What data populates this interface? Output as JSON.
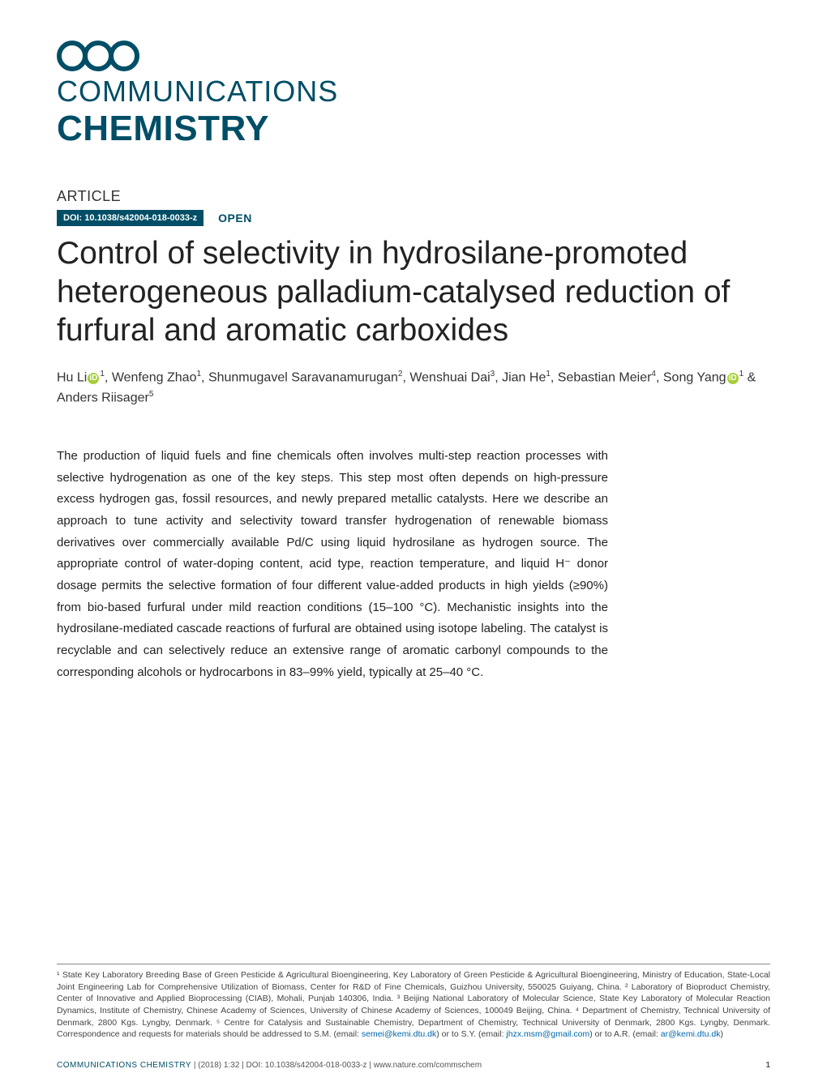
{
  "brand": {
    "line1": "COMMUNICATIONS",
    "line2": "CHEMISTRY"
  },
  "article_type": "ARTICLE",
  "doi_badge": "DOI: 10.1038/s42004-018-0033-z",
  "open_label": "OPEN",
  "title": "Control of selectivity in hydrosilane-promoted heterogeneous palladium-catalysed reduction of furfural and aromatic carboxides",
  "authors": {
    "a1": "Hu Li",
    "a1_aff": "1",
    "a2": ", Wenfeng Zhao",
    "a2_aff": "1",
    "a3": ", Shunmugavel Saravanamurugan",
    "a3_aff": "2",
    "a4": ", Wenshuai Dai",
    "a4_aff": "3",
    "a5": ", Jian He",
    "a5_aff": "1",
    "a6": ", Sebastian Meier",
    "a6_aff": "4",
    "a7": ", Song Yang",
    "a7_aff": "1",
    "a8": " & Anders Riisager",
    "a8_aff": "5"
  },
  "abstract": "The production of liquid fuels and fine chemicals often involves multi-step reaction processes with selective hydrogenation as one of the key steps. This step most often depends on high-pressure excess hydrogen gas, fossil resources, and newly prepared metallic catalysts. Here we describe an approach to tune activity and selectivity toward transfer hydrogenation of renewable biomass derivatives over commercially available Pd/C using liquid hydrosilane as hydrogen source. The appropriate control of water-doping content, acid type, reaction temperature, and liquid H⁻ donor dosage permits the selective formation of four different value-added products in high yields (≥90%) from bio-based furfural under mild reaction conditions (15–100 °C). Mechanistic insights into the hydrosilane-mediated cascade reactions of furfural are obtained using isotope labeling. The catalyst is recyclable and can selectively reduce an extensive range of aromatic carbonyl compounds to the corresponding alcohols or hydrocarbons in 83–99% yield, typically at 25–40 °C.",
  "affiliations": {
    "text_1": "¹ State Key Laboratory Breeding Base of Green Pesticide & Agricultural Bioengineering, Key Laboratory of Green Pesticide & Agricultural Bioengineering, Ministry of Education, State-Local Joint Engineering Lab for Comprehensive Utilization of Biomass, Center for R&D of Fine Chemicals, Guizhou University, 550025 Guiyang, China. ² Laboratory of Bioproduct Chemistry, Center of Innovative and Applied Bioprocessing (CIAB), Mohali, Punjab 140306, India. ³ Beijing National Laboratory of Molecular Science, State Key Laboratory of Molecular Reaction Dynamics, Institute of Chemistry, Chinese Academy of Sciences, University of Chinese Academy of Sciences, 100049 Beijing, China. ⁴ Department of Chemistry, Technical University of Denmark, 2800 Kgs. Lyngby, Denmark. ⁵ Centre for Catalysis and Sustainable Chemistry, Department of Chemistry, Technical University of Denmark, 2800 Kgs. Lyngby, Denmark. Correspondence and requests for materials should be addressed to S.M. (email: ",
    "email1": "semei@kemi.dtu.dk",
    "text_2": ") or to S.Y. (email: ",
    "email2": "jhzx.msm@gmail.com",
    "text_3": ") or to A.R. (email: ",
    "email3": "ar@kemi.dtu.dk",
    "text_4": ")"
  },
  "footer": {
    "journal": "COMMUNICATIONS CHEMISTRY",
    "issue": " |    (2018) 1:32 ",
    "doi_url": "| DOI: 10.1038/s42004-018-0033-z | www.nature.com/commschem",
    "page": "1"
  },
  "colors": {
    "brand": "#004e66",
    "orcid": "#a6ce39",
    "link": "#0066aa"
  }
}
